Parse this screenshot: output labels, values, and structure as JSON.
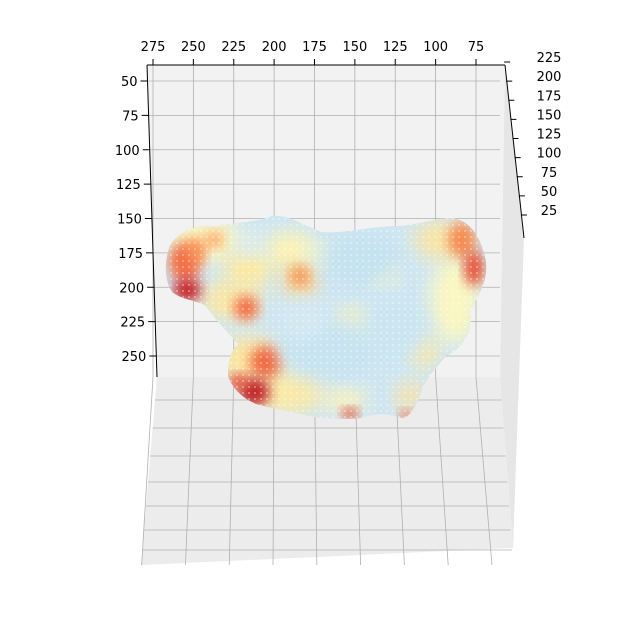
{
  "chart_data": {
    "type": "3d-surface",
    "colormap": "RdYlBu_r",
    "grid": true,
    "x_axis": {
      "ticks": [
        275,
        250,
        225,
        200,
        175,
        150,
        125,
        100,
        75
      ]
    },
    "y_axis": {
      "ticks": [
        50,
        75,
        100,
        125,
        150,
        175,
        200,
        225,
        250
      ]
    },
    "z_axis": {
      "ticks": [
        225,
        200,
        175,
        150,
        125,
        100,
        75,
        50,
        25
      ]
    },
    "hotspots": [
      {
        "region": "left-lobe-upper",
        "intensity": 0.95
      },
      {
        "region": "left-lobe-lower",
        "intensity": 0.9
      },
      {
        "region": "bottom-left-lobe",
        "intensity": 0.95
      },
      {
        "region": "right-lobe",
        "intensity": 0.85
      },
      {
        "region": "center-left",
        "intensity": 0.7
      },
      {
        "region": "bottom-center",
        "intensity": 0.8
      }
    ]
  }
}
